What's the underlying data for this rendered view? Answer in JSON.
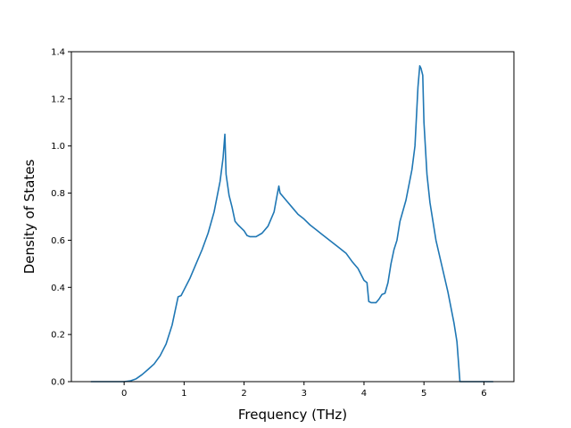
{
  "chart_data": {
    "type": "line",
    "xlabel": "Frequency (THz)",
    "ylabel": "Density of States",
    "xlim": [
      -0.88,
      6.5
    ],
    "ylim": [
      0.0,
      1.4
    ],
    "xticks": [
      0,
      1,
      2,
      3,
      4,
      5,
      6
    ],
    "yticks": [
      0.0,
      0.2,
      0.4,
      0.6,
      0.8,
      1.0,
      1.2,
      1.4
    ],
    "xtick_labels": [
      "0",
      "1",
      "2",
      "3",
      "4",
      "5",
      "6"
    ],
    "ytick_labels": [
      "0.0",
      "0.2",
      "0.4",
      "0.6",
      "0.8",
      "1.0",
      "1.2",
      "1.4"
    ],
    "grid": false,
    "series": [
      {
        "color": "#1f77b4",
        "x": [
          -0.55,
          0.0,
          0.1,
          0.2,
          0.3,
          0.4,
          0.5,
          0.6,
          0.7,
          0.8,
          0.85,
          0.9,
          0.95,
          1.0,
          1.1,
          1.2,
          1.3,
          1.4,
          1.5,
          1.6,
          1.65,
          1.68,
          1.7,
          1.75,
          1.8,
          1.85,
          1.9,
          2.0,
          2.05,
          2.1,
          2.2,
          2.3,
          2.4,
          2.5,
          2.55,
          2.58,
          2.6,
          2.7,
          2.8,
          2.9,
          3.0,
          3.1,
          3.2,
          3.3,
          3.4,
          3.5,
          3.6,
          3.7,
          3.8,
          3.9,
          4.0,
          4.05,
          4.08,
          4.12,
          4.2,
          4.25,
          4.3,
          4.35,
          4.4,
          4.45,
          4.5,
          4.55,
          4.6,
          4.7,
          4.8,
          4.85,
          4.9,
          4.93,
          4.95,
          4.98,
          5.0,
          5.05,
          5.1,
          5.2,
          5.3,
          5.4,
          5.5,
          5.55,
          5.6,
          5.7,
          5.8,
          6.0,
          6.15
        ],
        "y": [
          0.0,
          0.0,
          0.003,
          0.012,
          0.03,
          0.052,
          0.075,
          0.11,
          0.16,
          0.24,
          0.3,
          0.36,
          0.365,
          0.39,
          0.44,
          0.5,
          0.56,
          0.63,
          0.72,
          0.85,
          0.95,
          1.05,
          0.88,
          0.79,
          0.74,
          0.68,
          0.665,
          0.64,
          0.62,
          0.615,
          0.615,
          0.63,
          0.66,
          0.72,
          0.79,
          0.83,
          0.8,
          0.77,
          0.74,
          0.71,
          0.69,
          0.665,
          0.645,
          0.625,
          0.605,
          0.585,
          0.565,
          0.545,
          0.51,
          0.48,
          0.43,
          0.42,
          0.34,
          0.335,
          0.335,
          0.35,
          0.37,
          0.375,
          0.42,
          0.5,
          0.56,
          0.6,
          0.68,
          0.77,
          0.9,
          1.0,
          1.25,
          1.34,
          1.33,
          1.3,
          1.1,
          0.88,
          0.76,
          0.6,
          0.49,
          0.38,
          0.25,
          0.17,
          0.0,
          0.0,
          0.0,
          0.0,
          0.0
        ]
      }
    ]
  }
}
